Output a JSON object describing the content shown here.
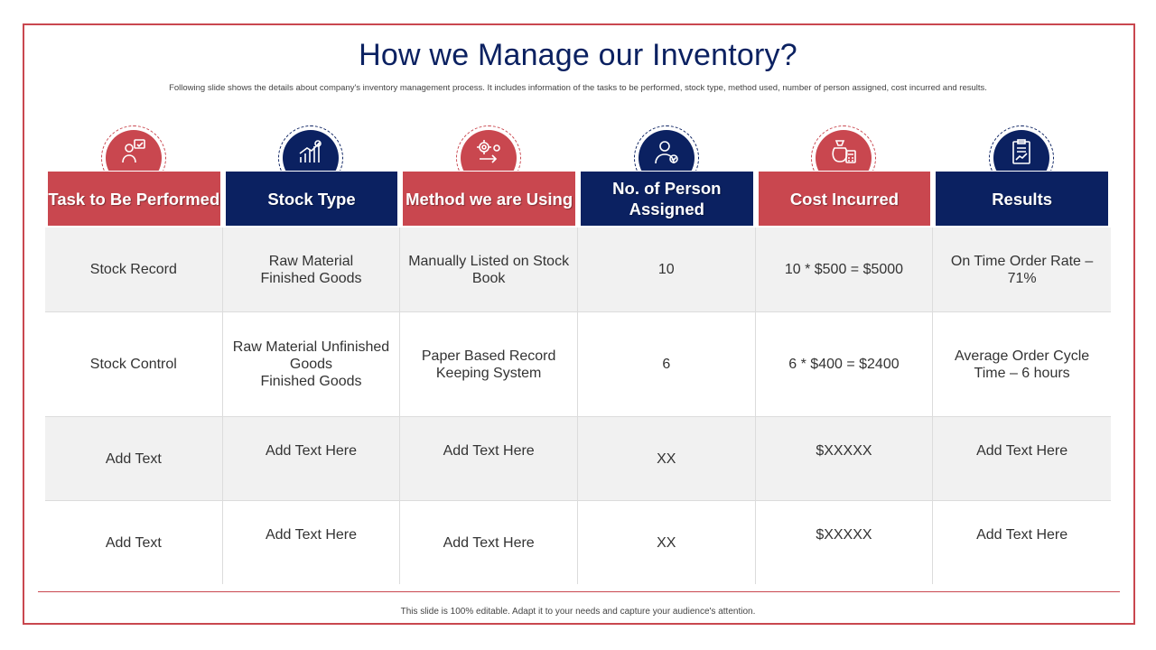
{
  "title": "How we Manage our Inventory?",
  "subtitle": "Following slide shows the details about company's inventory management process. It includes information of the tasks to be performed, stock type, method used, number of person assigned, cost incurred and results.",
  "colors": {
    "accent_red": "#c9474f",
    "navy": "#0b2161",
    "row_shade": "#f1f1f1"
  },
  "columns": [
    {
      "label": "Task to Be Performed",
      "color": "red",
      "icon": "team-task-icon"
    },
    {
      "label": "Stock Type",
      "color": "navy",
      "icon": "growth-chart-icon"
    },
    {
      "label": "Method we are Using",
      "color": "red",
      "icon": "process-gear-icon"
    },
    {
      "label": "No. of Person Assigned",
      "color": "navy",
      "icon": "person-check-icon"
    },
    {
      "label": "Cost Incurred",
      "color": "red",
      "icon": "money-bag-calculator-icon"
    },
    {
      "label": "Results",
      "color": "navy",
      "icon": "clipboard-report-icon"
    }
  ],
  "rows": [
    [
      "Stock Record",
      "Raw Material\nFinished Goods",
      "Manually  Listed on Stock Book",
      "10",
      "10 * $500 = $5000",
      "On Time Order Rate – 71%"
    ],
    [
      "Stock Control",
      "Raw Material Unfinished Goods\nFinished Goods",
      "Paper Based Record Keeping System",
      "6",
      "6 * $400 = $2400",
      "Average Order Cycle Time – 6 hours"
    ],
    [
      "Add Text",
      "Add Text Here",
      "Add Text Here",
      "XX",
      "$XXXXX",
      "Add Text Here"
    ],
    [
      "Add Text",
      "Add Text Here",
      "Add Text Here",
      "XX",
      "$XXXXX",
      "Add Text Here"
    ]
  ],
  "footer": "This slide is 100% editable.  Adapt it to your needs and capture your audience's attention."
}
